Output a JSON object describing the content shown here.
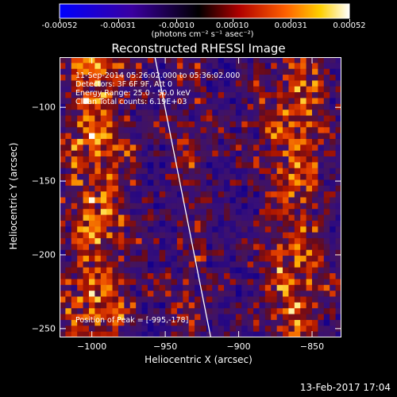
{
  "colorbar": {
    "ticks": [
      -0.00052,
      -0.00031,
      -0.0001,
      0.0001,
      0.00031,
      0.00052
    ],
    "tick_labels": [
      "-0.00052",
      "-0.00031",
      "-0.00010",
      "0.00010",
      "0.00031",
      "0.00052"
    ],
    "units_label": "(photons cm⁻² s⁻¹ asec⁻²)",
    "colors": [
      "#0000ff",
      "#300078",
      "#000000",
      "#a01000",
      "#ff5000",
      "#ffb000",
      "#ffffff"
    ]
  },
  "chart_data": {
    "type": "heatmap",
    "title": "Reconstructed RHESSI Image",
    "xlabel": "Heliocentric X (arcsec)",
    "ylabel": "Heliocentric Y (arcsec)",
    "xlim": [
      -1022,
      -830
    ],
    "ylim": [
      -256,
      -66
    ],
    "xticks": [
      -1000,
      -950,
      -900,
      -850
    ],
    "xtick_labels": [
      "−1000",
      "−950",
      "−900",
      "−850"
    ],
    "yticks": [
      -100,
      -150,
      -200,
      -250
    ],
    "ytick_labels": [
      "−100",
      "−150",
      "−200",
      "−250"
    ],
    "limb_line": [
      [
        -957,
        -66
      ],
      [
        -919,
        -256
      ]
    ],
    "annotations": {
      "time_range": "11-Sep-2014 05:26:02.000 to 05:36:02.000",
      "detectors": "Detectors: 3F 6F 9F, Att 0",
      "energy": "Energy Range: 25.0 - 50.0 keV",
      "clean": "Clean    Total counts: 6.19E+03",
      "peak": "Position of Peak = [-995,-178]"
    }
  },
  "footer": {
    "timestamp": "13-Feb-2017 17:04"
  }
}
